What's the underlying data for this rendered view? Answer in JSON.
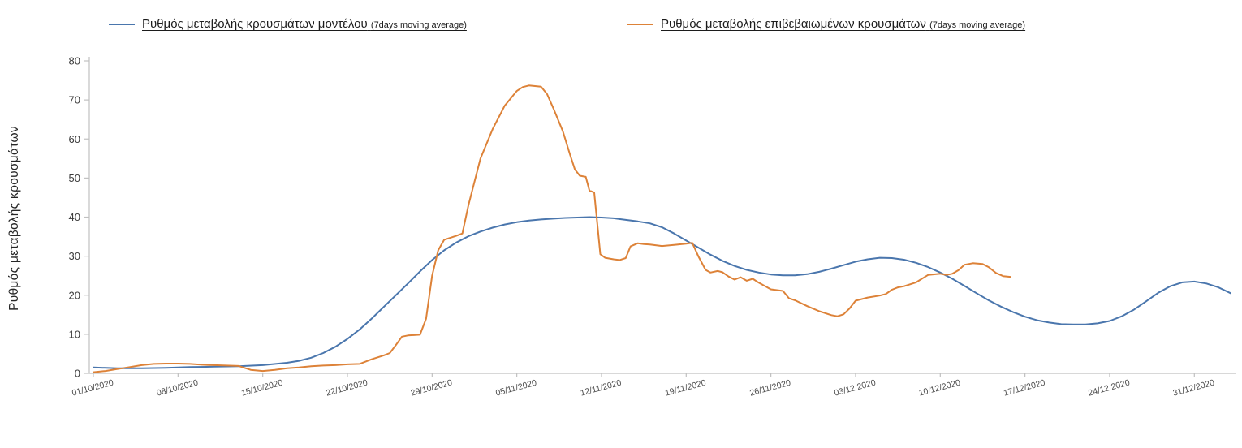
{
  "page": {
    "background": "#ffffff"
  },
  "legend": {
    "position": "top",
    "items": [
      {
        "id": "model",
        "label": "Ρυθμός μεταβολής κρουσμάτων μοντέλου",
        "suffix": "(7days moving average)",
        "color": "#4a76ad"
      },
      {
        "id": "confirmed",
        "label": "Ρυθμός μεταβολής επιβεβαιωμένων κρουσμάτων",
        "suffix": "(7days moving average)",
        "color": "#dd8238"
      }
    ]
  },
  "chart_data": {
    "type": "line",
    "title": "",
    "xlabel": "",
    "ylabel": "Ρυθμός μεταβολής κρουσμάτων",
    "ylim": [
      0,
      80
    ],
    "yticks": [
      0,
      10,
      20,
      30,
      40,
      50,
      60,
      70,
      80
    ],
    "grid": false,
    "legend_position": "top",
    "axis_color": "#c0c0c0",
    "y_tick_label_color": "#3a3a3a",
    "x_tick_label_color": "#4d4d4d",
    "x_unit": "days since 01/10/2020",
    "x_range_days": [
      0,
      94
    ],
    "x_ticks": [
      {
        "day": 0,
        "label": "01/10/2020"
      },
      {
        "day": 7,
        "label": "08/10/2020"
      },
      {
        "day": 14,
        "label": "15/10/2020"
      },
      {
        "day": 21,
        "label": "22/10/2020"
      },
      {
        "day": 28,
        "label": "29/10/2020"
      },
      {
        "day": 35,
        "label": "05/11/2020"
      },
      {
        "day": 42,
        "label": "12/11/2020"
      },
      {
        "day": 49,
        "label": "19/11/2020"
      },
      {
        "day": 56,
        "label": "26/11/2020"
      },
      {
        "day": 63,
        "label": "03/12/2020"
      },
      {
        "day": 70,
        "label": "10/12/2020"
      },
      {
        "day": 77,
        "label": "17/12/2020"
      },
      {
        "day": 84,
        "label": "24/12/2020"
      },
      {
        "day": 91,
        "label": "31/12/2020"
      }
    ],
    "series": [
      {
        "id": "model",
        "name": "Ρυθμός μεταβολής κρουσμάτων μοντέλου (7days moving average)",
        "color": "#4a76ad",
        "points": [
          [
            0,
            1.5
          ],
          [
            2,
            1.3
          ],
          [
            4,
            1.3
          ],
          [
            6,
            1.4
          ],
          [
            8,
            1.6
          ],
          [
            10,
            1.7
          ],
          [
            12,
            1.8
          ],
          [
            14,
            2.1
          ],
          [
            16,
            2.7
          ],
          [
            17,
            3.2
          ],
          [
            18,
            4.0
          ],
          [
            19,
            5.2
          ],
          [
            20,
            6.8
          ],
          [
            21,
            8.8
          ],
          [
            22,
            11.2
          ],
          [
            23,
            14
          ],
          [
            24,
            17
          ],
          [
            25,
            20
          ],
          [
            26,
            23
          ],
          [
            27,
            26.1
          ],
          [
            28,
            29
          ],
          [
            29,
            31.5
          ],
          [
            30,
            33.5
          ],
          [
            31,
            35.1
          ],
          [
            32,
            36.3
          ],
          [
            33,
            37.3
          ],
          [
            34,
            38.1
          ],
          [
            35,
            38.7
          ],
          [
            36,
            39.1
          ],
          [
            37,
            39.4
          ],
          [
            38,
            39.6
          ],
          [
            39,
            39.8
          ],
          [
            40,
            39.9
          ],
          [
            41,
            40
          ],
          [
            42,
            39.9
          ],
          [
            43,
            39.7
          ],
          [
            44,
            39.3
          ],
          [
            45,
            38.9
          ],
          [
            46,
            38.4
          ],
          [
            47,
            37.4
          ],
          [
            48,
            35.8
          ],
          [
            49,
            34
          ],
          [
            50,
            32.2
          ],
          [
            51,
            30.4
          ],
          [
            52,
            28.8
          ],
          [
            53,
            27.5
          ],
          [
            54,
            26.5
          ],
          [
            55,
            25.8
          ],
          [
            56,
            25.3
          ],
          [
            57,
            25.1
          ],
          [
            58,
            25.1
          ],
          [
            59,
            25.4
          ],
          [
            60,
            26
          ],
          [
            61,
            26.8
          ],
          [
            62,
            27.7
          ],
          [
            63,
            28.6
          ],
          [
            64,
            29.2
          ],
          [
            65,
            29.6
          ],
          [
            66,
            29.5
          ],
          [
            67,
            29.1
          ],
          [
            68,
            28.3
          ],
          [
            69,
            27.2
          ],
          [
            70,
            25.8
          ],
          [
            71,
            24.2
          ],
          [
            72,
            22.4
          ],
          [
            73,
            20.5
          ],
          [
            74,
            18.7
          ],
          [
            75,
            17.1
          ],
          [
            76,
            15.7
          ],
          [
            77,
            14.5
          ],
          [
            78,
            13.6
          ],
          [
            79,
            13
          ],
          [
            80,
            12.6
          ],
          [
            81,
            12.5
          ],
          [
            82,
            12.5
          ],
          [
            83,
            12.8
          ],
          [
            84,
            13.4
          ],
          [
            85,
            14.6
          ],
          [
            86,
            16.3
          ],
          [
            87,
            18.4
          ],
          [
            88,
            20.6
          ],
          [
            89,
            22.3
          ],
          [
            90,
            23.3
          ],
          [
            91,
            23.5
          ],
          [
            92,
            23
          ],
          [
            93,
            22
          ],
          [
            94,
            20.5
          ]
        ]
      },
      {
        "id": "confirmed",
        "name": "Ρυθμός μεταβολής επιβεβαιωμένων κρουσμάτων (7days moving average)",
        "color": "#dd8238",
        "points": [
          [
            0,
            0.3
          ],
          [
            1,
            0.6
          ],
          [
            2,
            1.1
          ],
          [
            3,
            1.6
          ],
          [
            4,
            2.1
          ],
          [
            5,
            2.4
          ],
          [
            6,
            2.5
          ],
          [
            7,
            2.5
          ],
          [
            8,
            2.4
          ],
          [
            9,
            2.2
          ],
          [
            10,
            2.1
          ],
          [
            11,
            2
          ],
          [
            12,
            1.9
          ],
          [
            13,
            0.9
          ],
          [
            14,
            0.6
          ],
          [
            15,
            0.9
          ],
          [
            16,
            1.3
          ],
          [
            17,
            1.5
          ],
          [
            18,
            1.8
          ],
          [
            19,
            2
          ],
          [
            20,
            2.1
          ],
          [
            21,
            2.3
          ],
          [
            22,
            2.4
          ],
          [
            23,
            3.6
          ],
          [
            24,
            4.6
          ],
          [
            24.5,
            5.2
          ],
          [
            25,
            7.2
          ],
          [
            25.5,
            9.4
          ],
          [
            26,
            9.7
          ],
          [
            27,
            9.9
          ],
          [
            27.5,
            14
          ],
          [
            28,
            25
          ],
          [
            28.5,
            31.5
          ],
          [
            29,
            34.2
          ],
          [
            30,
            35.2
          ],
          [
            30.5,
            35.8
          ],
          [
            31,
            43
          ],
          [
            32,
            55
          ],
          [
            33,
            62.5
          ],
          [
            34,
            68.5
          ],
          [
            35,
            72.3
          ],
          [
            35.5,
            73.3
          ],
          [
            36,
            73.7
          ],
          [
            37,
            73.4
          ],
          [
            37.5,
            71.5
          ],
          [
            38,
            68
          ],
          [
            38.8,
            62
          ],
          [
            39.4,
            56
          ],
          [
            39.8,
            52.2
          ],
          [
            40.2,
            50.6
          ],
          [
            40.7,
            50.3
          ],
          [
            41,
            46.8
          ],
          [
            41.4,
            46.3
          ],
          [
            41.9,
            30.5
          ],
          [
            42.3,
            29.6
          ],
          [
            43,
            29.2
          ],
          [
            43.5,
            29
          ],
          [
            44,
            29.5
          ],
          [
            44.4,
            32.5
          ],
          [
            45,
            33.3
          ],
          [
            45.5,
            33.1
          ],
          [
            46,
            33
          ],
          [
            47,
            32.6
          ],
          [
            48,
            32.9
          ],
          [
            49,
            33.2
          ],
          [
            49.5,
            33.4
          ],
          [
            50,
            30
          ],
          [
            50.6,
            26.5
          ],
          [
            51,
            25.8
          ],
          [
            51.6,
            26.2
          ],
          [
            52,
            25.9
          ],
          [
            52.5,
            24.8
          ],
          [
            53,
            24
          ],
          [
            53.5,
            24.6
          ],
          [
            54,
            23.7
          ],
          [
            54.5,
            24.2
          ],
          [
            55,
            23.2
          ],
          [
            56,
            21.5
          ],
          [
            57,
            21.1
          ],
          [
            57.5,
            19.2
          ],
          [
            58,
            18.7
          ],
          [
            59,
            17.2
          ],
          [
            60,
            15.9
          ],
          [
            61,
            14.9
          ],
          [
            61.5,
            14.6
          ],
          [
            62,
            15.1
          ],
          [
            62.5,
            16.6
          ],
          [
            63,
            18.6
          ],
          [
            64,
            19.4
          ],
          [
            65,
            19.9
          ],
          [
            65.5,
            20.3
          ],
          [
            66,
            21.4
          ],
          [
            66.5,
            22
          ],
          [
            67,
            22.3
          ],
          [
            68,
            23.3
          ],
          [
            69,
            25.2
          ],
          [
            70,
            25.5
          ],
          [
            70.5,
            25.2
          ],
          [
            71,
            25.5
          ],
          [
            71.5,
            26.4
          ],
          [
            72,
            27.8
          ],
          [
            72.7,
            28.2
          ],
          [
            73.5,
            28
          ],
          [
            74,
            27.2
          ],
          [
            74.6,
            25.7
          ],
          [
            75.2,
            24.9
          ],
          [
            75.8,
            24.7
          ]
        ]
      }
    ]
  }
}
